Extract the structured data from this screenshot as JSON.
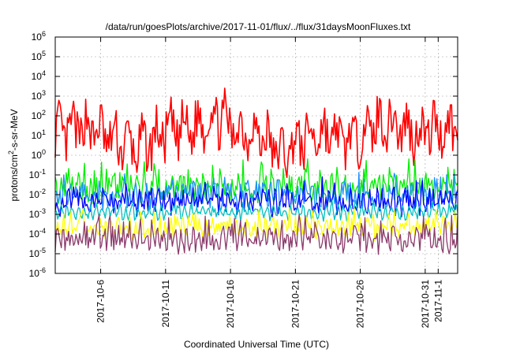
{
  "chart_data": {
    "type": "line",
    "title": "/data/run/goesPlots/archive/2017-11-01/flux/../flux/31daysMoonFluxes.txt",
    "xlabel": "Coordinated Universal Time (UTC)",
    "ylabel_parts": {
      "base": "protons/cm",
      "exp": "2",
      "rest": "-s-sr-MeV"
    },
    "y_scale": "log",
    "ylim": [
      1e-06,
      1000000.0
    ],
    "y_ticks": [
      {
        "value": 1e-06,
        "base": "10",
        "exp": "-6"
      },
      {
        "value": 1e-05,
        "base": "10",
        "exp": "-5"
      },
      {
        "value": 0.0001,
        "base": "10",
        "exp": "-4"
      },
      {
        "value": 0.001,
        "base": "10",
        "exp": "-3"
      },
      {
        "value": 0.01,
        "base": "10",
        "exp": "-2"
      },
      {
        "value": 0.1,
        "base": "10",
        "exp": "-1"
      },
      {
        "value": 1,
        "base": "10",
        "exp": "0"
      },
      {
        "value": 10.0,
        "base": "10",
        "exp": "1"
      },
      {
        "value": 100.0,
        "base": "10",
        "exp": "2"
      },
      {
        "value": 1000.0,
        "base": "10",
        "exp": "3"
      },
      {
        "value": 10000.0,
        "base": "10",
        "exp": "4"
      },
      {
        "value": 100000.0,
        "base": "10",
        "exp": "5"
      },
      {
        "value": 1000000.0,
        "base": "10",
        "exp": "6"
      }
    ],
    "xlim": [
      "2017-10-02T12:00",
      "2017-11-02T12:00"
    ],
    "x_ticks": [
      "2017-10-6",
      "2017-10-11",
      "2017-10-16",
      "2017-10-21",
      "2017-10-26",
      "2017-10-31",
      "2017-11-1"
    ],
    "grid": true,
    "legend": "none",
    "series": [
      {
        "color": "#ff0000",
        "base": 8,
        "spread": 1.2,
        "points": [
          [
            "2017-10-03",
            12
          ],
          [
            "2017-10-05",
            30
          ],
          [
            "2017-10-07",
            6
          ],
          [
            "2017-10-09",
            2
          ],
          [
            "2017-10-11",
            15
          ],
          [
            "2017-10-13",
            20
          ],
          [
            "2017-10-14",
            60
          ],
          [
            "2017-10-15",
            120
          ],
          [
            "2017-10-16",
            25
          ],
          [
            "2017-10-18",
            15
          ],
          [
            "2017-10-20",
            1
          ],
          [
            "2017-10-21",
            4
          ],
          [
            "2017-10-23",
            15
          ],
          [
            "2017-10-25",
            5
          ],
          [
            "2017-10-27",
            30
          ],
          [
            "2017-10-28",
            60
          ],
          [
            "2017-10-30",
            15
          ],
          [
            "2017-11-02",
            30
          ]
        ]
      },
      {
        "color": "#00ee00",
        "base": 0.02,
        "spread": 0.6
      },
      {
        "color": "#1e90ff",
        "base": 0.008,
        "spread": 0.5
      },
      {
        "color": "#0000ff",
        "base": 0.004,
        "spread": 0.5
      },
      {
        "color": "#00c0c0",
        "base": 0.0012,
        "spread": 0.2
      },
      {
        "color": "#ffff00",
        "base": 0.0002,
        "spread": 0.4
      },
      {
        "color": "#8b3a6b",
        "base": 5e-05,
        "spread": 0.5
      }
    ]
  }
}
